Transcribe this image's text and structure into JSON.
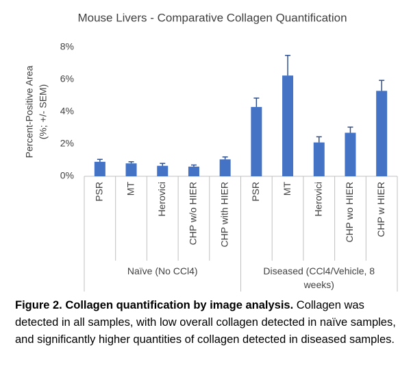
{
  "chart_data": {
    "type": "bar",
    "title": "Mouse Livers - Comparative Collagen Quantification",
    "y_label": [
      "Percent-Positive Area",
      "(%; +/- SEM)"
    ],
    "color": "#4472c4",
    "error_color": "#2e4f8f",
    "ylim": [
      0,
      8
    ],
    "yticks": [
      {
        "value": 0,
        "label": "0%"
      },
      {
        "value": 2,
        "label": "2%"
      },
      {
        "value": 4,
        "label": "4%"
      },
      {
        "value": 6,
        "label": "6%"
      },
      {
        "value": 8,
        "label": "8%"
      }
    ],
    "groups": [
      {
        "name": "Naïve (No CCl4)",
        "categories": [
          "PSR",
          "MT",
          "Herovici",
          "CHP w/o HIER",
          "CHP with HIER"
        ],
        "values": [
          0.9,
          0.8,
          0.65,
          0.6,
          1.05
        ],
        "errors": [
          0.15,
          0.1,
          0.15,
          0.1,
          0.15
        ]
      },
      {
        "name": "Diseased (CCl4/Vehicle, 8 weeks)",
        "categories": [
          "PSR",
          "MT",
          "Herovici",
          "CHP wo HIER",
          "CHP w HIER"
        ],
        "values": [
          4.3,
          6.25,
          2.1,
          2.7,
          5.3
        ],
        "errors": [
          0.55,
          1.25,
          0.35,
          0.35,
          0.65
        ]
      }
    ]
  },
  "caption": {
    "title": "Figure 2. Collagen quantification by image analysis.",
    "text": "Collagen was detected in all samples, with low overall collagen detected in naïve samples, and significantly higher quantities of collagen detected in diseased samples."
  }
}
